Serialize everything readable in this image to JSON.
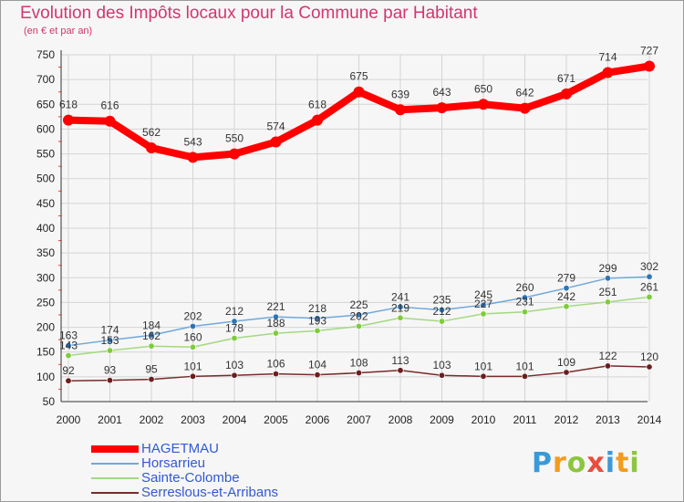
{
  "header": {
    "title": "Evolution des Impôts locaux pour la Commune par Habitant",
    "subtitle": "(en € et par an)"
  },
  "logo": {
    "letters": [
      "P",
      "r",
      "o",
      "x",
      "i",
      "t",
      "i"
    ],
    "colors": [
      "#3a9ad9",
      "#f29b1d",
      "#8cc63f",
      "#e84d3d",
      "#3a9ad9",
      "#f29b1d",
      "#8cc63f"
    ]
  },
  "chart_data": {
    "type": "line",
    "title": "Evolution des Impôts locaux pour la Commune par Habitant",
    "subtitle": "(en € et par an)",
    "xlabel": "",
    "ylabel": "",
    "ylim": [
      50,
      750
    ],
    "yticks": [
      50,
      100,
      150,
      200,
      250,
      300,
      350,
      400,
      450,
      500,
      550,
      600,
      650,
      700,
      750
    ],
    "categories": [
      "2000",
      "2001",
      "2002",
      "2003",
      "2004",
      "2005",
      "2006",
      "2007",
      "2008",
      "2009",
      "2010",
      "2011",
      "2012",
      "2013",
      "2014"
    ],
    "grid": true,
    "legend_position": "bottom-left",
    "series": [
      {
        "name": "HAGETMAU",
        "color": "#ff0000",
        "values": [
          618,
          616,
          562,
          543,
          550,
          574,
          618,
          675,
          639,
          643,
          650,
          642,
          671,
          714,
          727
        ]
      },
      {
        "name": "Horsarrieu",
        "color": "#6fa8dc",
        "marker": "#2e75b6",
        "values": [
          163,
          174,
          184,
          202,
          212,
          221,
          218,
          225,
          241,
          235,
          245,
          260,
          279,
          299,
          302
        ]
      },
      {
        "name": "Sainte-Colombe",
        "color": "#a3d97f",
        "marker": "#7dcc3b",
        "values": [
          143,
          153,
          162,
          160,
          178,
          188,
          193,
          202,
          219,
          212,
          227,
          231,
          242,
          251,
          261
        ]
      },
      {
        "name": "Serreslous-et-Arribans",
        "color": "#7a2a2a",
        "marker": "#6b1e1e",
        "values": [
          92,
          93,
          95,
          101,
          103,
          106,
          104,
          108,
          113,
          103,
          101,
          101,
          109,
          122,
          120
        ]
      }
    ]
  }
}
